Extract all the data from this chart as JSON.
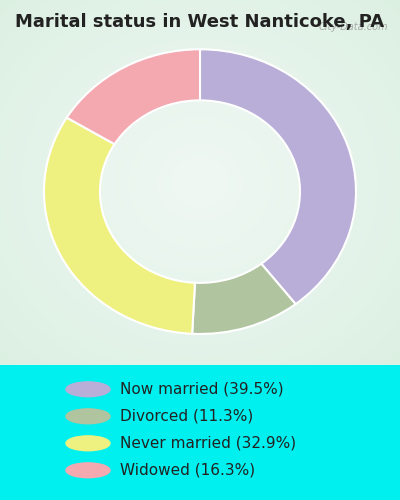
{
  "title": "Marital status in West Nanticoke, PA",
  "categories": [
    "Now married (39.5%)",
    "Divorced (11.3%)",
    "Never married (32.9%)",
    "Widowed (16.3%)"
  ],
  "values": [
    39.5,
    11.3,
    32.9,
    16.3
  ],
  "colors": [
    "#b8aed8",
    "#b0c4a0",
    "#eef080",
    "#f4a8b0"
  ],
  "bg_cyan": "#00f0f0",
  "chart_bg_outer": "#d8ede0",
  "chart_bg_inner": "#f0f8f4",
  "title_fontsize": 13,
  "legend_fontsize": 11,
  "start_angle": 90,
  "watermark": "City-Data.com"
}
